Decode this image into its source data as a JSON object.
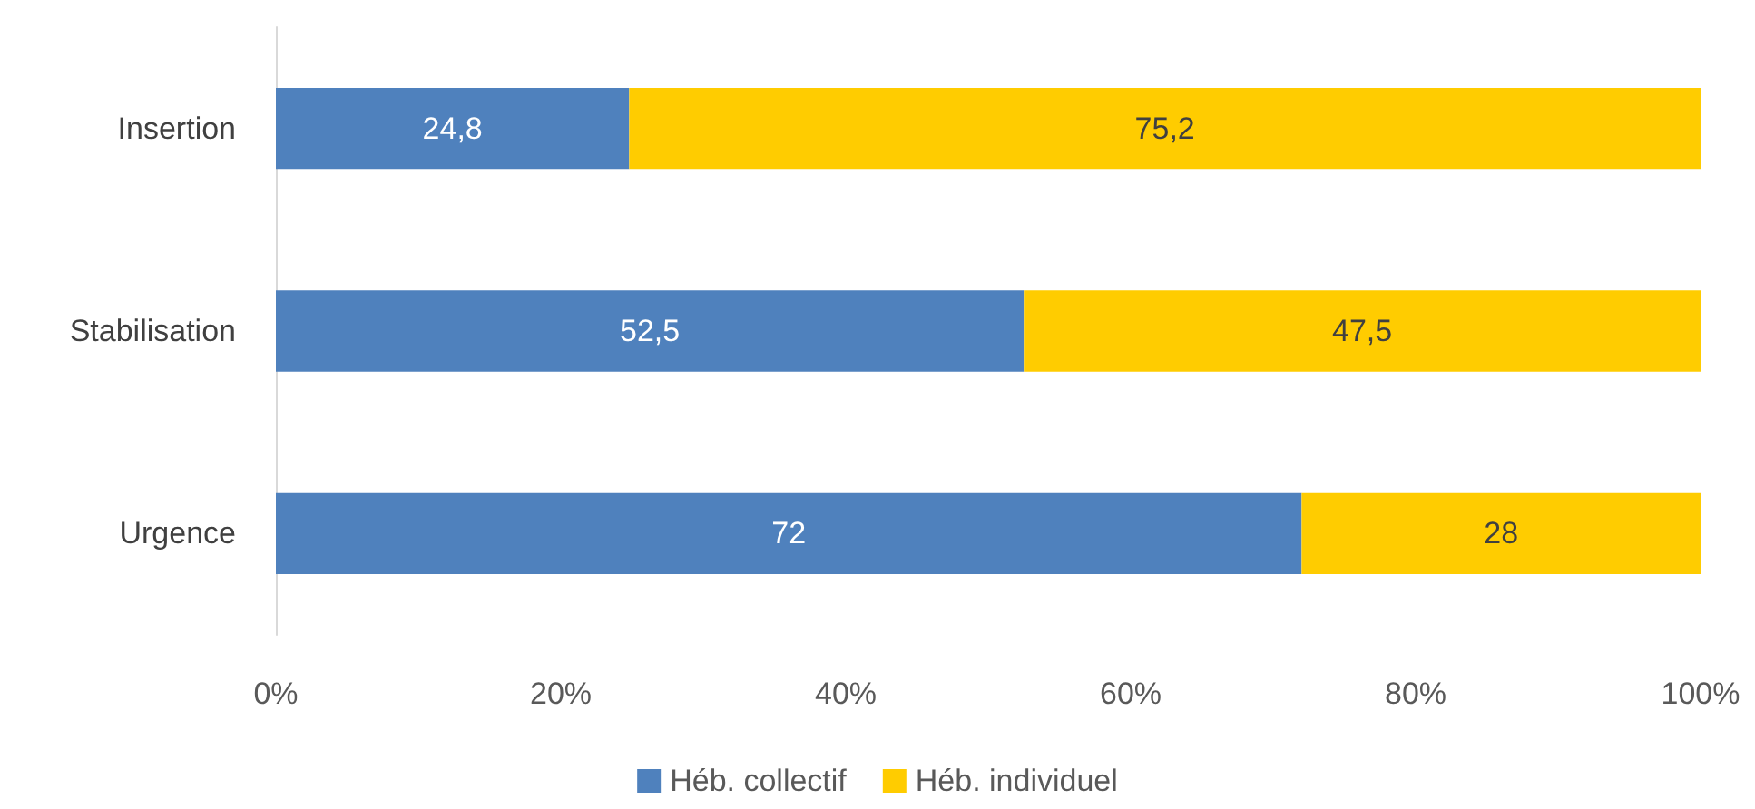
{
  "chart_data": {
    "type": "bar",
    "orientation": "horizontal",
    "stacked": true,
    "categories": [
      "Insertion",
      "Stabilisation",
      "Urgence"
    ],
    "series": [
      {
        "name": "Héb. collectif",
        "color": "#4f81bd",
        "values": [
          24.8,
          52.5,
          72
        ],
        "value_labels": [
          "24,8",
          "52,5",
          "72"
        ]
      },
      {
        "name": "Héb. individuel",
        "color": "#ffcc00",
        "values": [
          75.2,
          47.5,
          28
        ],
        "value_labels": [
          "75,2",
          "47,5",
          "28"
        ]
      }
    ],
    "xlim": [
      0,
      100
    ],
    "xticks": [
      {
        "value": 0,
        "label": "0%"
      },
      {
        "value": 20,
        "label": "20%"
      },
      {
        "value": 40,
        "label": "40%"
      },
      {
        "value": 60,
        "label": "60%"
      },
      {
        "value": 80,
        "label": "80%"
      },
      {
        "value": 100,
        "label": "100%"
      }
    ],
    "grid": false,
    "legend": "bottom"
  }
}
